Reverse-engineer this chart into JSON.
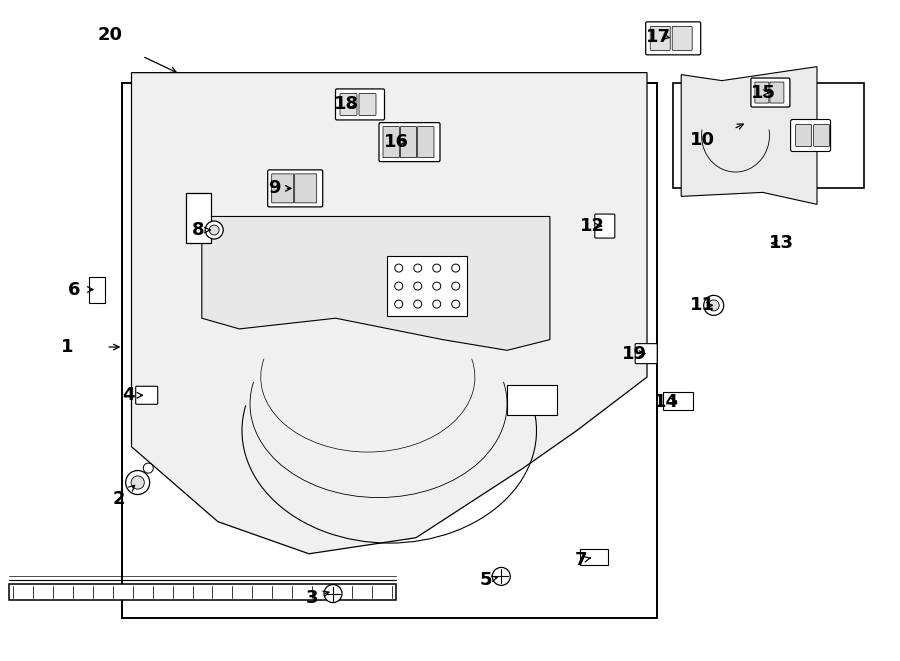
{
  "bg_color": "#ffffff",
  "line_color": "#000000",
  "label_color": "#000000",
  "labels": [
    "1",
    "2",
    "3",
    "4",
    "5",
    "6",
    "7",
    "8",
    "9",
    "10",
    "11",
    "12",
    "13",
    "14",
    "15",
    "16",
    "17",
    "18",
    "19",
    "20"
  ]
}
